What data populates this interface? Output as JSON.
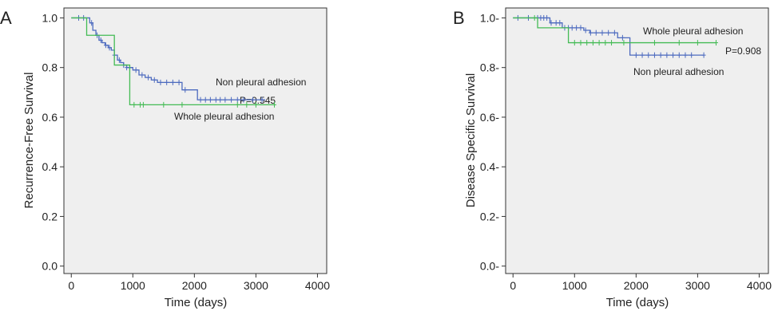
{
  "colors": {
    "plot_bg": "#efefef",
    "frame": "#333333",
    "non_pleural": "#4d6bbf",
    "whole_pleural": "#44bb55"
  },
  "chart_data": [
    {
      "type": "line",
      "panel": "A",
      "xlabel": "Time (days)",
      "ylabel": "Recurrence-Free Survival",
      "xlim": [
        -120,
        4150
      ],
      "ylim": [
        -0.03,
        1.04
      ],
      "xticks": [
        0,
        1000,
        2000,
        3000,
        4000
      ],
      "yticks": [
        0.0,
        0.2,
        0.4,
        0.6,
        0.8,
        1.0
      ],
      "ytick_labels": [
        "0.0",
        "0.2",
        "0.4",
        "0.6",
        "0.8",
        "1.0"
      ],
      "grid": false,
      "step": true,
      "annotations": [
        "Non pleural adhesion",
        "P=0.545",
        "Whole pleural adhesion"
      ],
      "series": [
        {
          "name": "Non pleural adhesion",
          "color_key": "non_pleural",
          "x": [
            0,
            300,
            350,
            400,
            450,
            500,
            550,
            600,
            650,
            700,
            750,
            800,
            850,
            900,
            1000,
            1100,
            1200,
            1300,
            1400,
            1500,
            1800,
            2050,
            3150
          ],
          "y": [
            1.0,
            0.98,
            0.95,
            0.93,
            0.91,
            0.9,
            0.89,
            0.88,
            0.87,
            0.85,
            0.83,
            0.82,
            0.81,
            0.8,
            0.79,
            0.77,
            0.76,
            0.75,
            0.74,
            0.74,
            0.71,
            0.67,
            0.67
          ],
          "censored": [
            120,
            200,
            330,
            420,
            480,
            560,
            620,
            700,
            780,
            850,
            900,
            950,
            1050,
            1150,
            1250,
            1350,
            1450,
            1550,
            1650,
            1750,
            1850,
            2100,
            2180,
            2260,
            2350,
            2420,
            2500,
            2600,
            2700,
            2800,
            2950,
            3100
          ]
        },
        {
          "name": "Whole pleural adhesion",
          "color_key": "whole_pleural",
          "x": [
            0,
            250,
            700,
            950,
            3300
          ],
          "y": [
            1.0,
            0.93,
            0.81,
            0.65,
            0.65
          ],
          "censored": [
            1020,
            1120,
            1170,
            1500,
            1800,
            2700,
            2850,
            3000,
            3300
          ]
        }
      ]
    },
    {
      "type": "line",
      "panel": "B",
      "xlabel": "Time (days)",
      "ylabel": "Disease Specific Survival",
      "xlim": [
        -120,
        4150
      ],
      "ylim": [
        -0.03,
        1.04
      ],
      "xticks": [
        0,
        1000,
        2000,
        3000,
        4000
      ],
      "yticks": [
        0.0,
        0.2,
        0.4,
        0.6,
        0.8,
        1.0
      ],
      "ytick_labels": [
        "0.0-",
        "0.2-",
        "0.4-",
        "0.6-",
        "0.8-",
        "1.0-"
      ],
      "grid": false,
      "step": true,
      "annotations": [
        "Whole pleural adhesion",
        "P=0.908",
        "Non pleural adhesion"
      ],
      "series": [
        {
          "name": "Non pleural adhesion",
          "color_key": "non_pleural",
          "x": [
            0,
            600,
            800,
            1150,
            1250,
            1700,
            1900,
            3100
          ],
          "y": [
            1.0,
            0.98,
            0.96,
            0.95,
            0.94,
            0.92,
            0.85,
            0.85
          ],
          "censored": [
            80,
            250,
            400,
            450,
            500,
            550,
            620,
            700,
            760,
            840,
            900,
            960,
            1030,
            1100,
            1180,
            1260,
            1350,
            1450,
            1550,
            1650,
            1780,
            2000,
            2100,
            2200,
            2300,
            2400,
            2500,
            2600,
            2700,
            2800,
            2900,
            3100
          ]
        },
        {
          "name": "Whole pleural adhesion",
          "color_key": "whole_pleural",
          "x": [
            0,
            400,
            900,
            1900,
            3300
          ],
          "y": [
            1.0,
            0.96,
            0.9,
            0.9,
            0.9
          ],
          "censored": [
            350,
            1000,
            1100,
            1200,
            1300,
            1400,
            1500,
            1600,
            1800,
            2300,
            2700,
            3000,
            3300
          ]
        }
      ]
    }
  ]
}
